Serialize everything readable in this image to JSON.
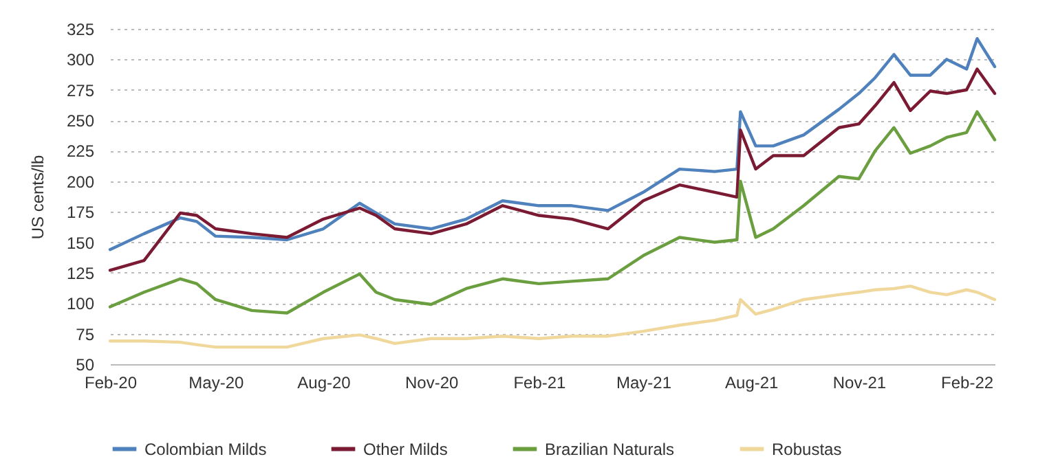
{
  "chart_data": {
    "type": "line",
    "ylabel": "US cents/lb",
    "x": [
      "2020-02-01",
      "2020-03-01",
      "2020-04-01",
      "2020-04-15",
      "2020-05-01",
      "2020-06-01",
      "2020-07-01",
      "2020-08-01",
      "2020-09-01",
      "2020-09-15",
      "2020-10-01",
      "2020-11-01",
      "2020-12-01",
      "2021-01-01",
      "2021-02-01",
      "2021-03-01",
      "2021-04-01",
      "2021-05-01",
      "2021-06-01",
      "2021-07-01",
      "2021-07-20",
      "2021-07-23",
      "2021-08-05",
      "2021-08-20",
      "2021-09-15",
      "2021-10-15",
      "2021-11-01",
      "2021-11-15",
      "2021-12-01",
      "2021-12-15",
      "2022-01-01",
      "2022-01-15",
      "2022-02-01",
      "2022-02-10",
      "2022-02-25"
    ],
    "series": [
      {
        "name": "Colombian Milds",
        "color": "#4f81bd",
        "values": [
          144,
          157,
          170,
          167,
          155,
          154,
          152,
          161,
          182,
          174,
          165,
          161,
          169,
          184,
          180,
          180,
          176,
          191,
          210,
          208,
          210,
          257,
          229,
          229,
          238,
          259,
          272,
          285,
          304,
          287,
          287,
          300,
          292,
          317,
          294
        ]
      },
      {
        "name": "Other Milds",
        "color": "#7b1a33",
        "values": [
          127,
          135,
          174,
          172,
          161,
          157,
          154,
          169,
          178,
          172,
          161,
          157,
          165,
          180,
          172,
          169,
          161,
          184,
          197,
          191,
          187,
          242,
          210,
          221,
          221,
          244,
          247,
          262,
          281,
          258,
          274,
          272,
          275,
          292,
          272
        ]
      },
      {
        "name": "Brazilian Naturals",
        "color": "#6a9e3f",
        "values": [
          97,
          109,
          120,
          116,
          103,
          94,
          92,
          109,
          124,
          109,
          103,
          99,
          112,
          120,
          116,
          118,
          120,
          139,
          154,
          150,
          152,
          200,
          154,
          161,
          180,
          204,
          202,
          225,
          244,
          223,
          229,
          236,
          240,
          257,
          234
        ]
      },
      {
        "name": "Robustas",
        "color": "#f0d89c",
        "values": [
          69,
          69,
          68,
          66,
          64,
          64,
          64,
          71,
          74,
          71,
          67,
          71,
          71,
          73,
          71,
          73,
          73,
          77,
          82,
          86,
          90,
          103,
          91,
          95,
          103,
          107,
          109,
          111,
          112,
          114,
          109,
          107,
          111,
          109,
          103
        ]
      }
    ],
    "xlim": [
      "2020-02-01",
      "2022-02-25"
    ],
    "xticks": [
      {
        "value": "2020-02-01",
        "label": "Feb-20"
      },
      {
        "value": "2020-05-01",
        "label": "May-20"
      },
      {
        "value": "2020-08-01",
        "label": "Aug-20"
      },
      {
        "value": "2020-11-01",
        "label": "Nov-20"
      },
      {
        "value": "2021-02-01",
        "label": "Feb-21"
      },
      {
        "value": "2021-05-01",
        "label": "May-21"
      },
      {
        "value": "2021-08-01",
        "label": "Aug-21"
      },
      {
        "value": "2021-11-01",
        "label": "Nov-21"
      },
      {
        "value": "2022-02-01",
        "label": "Feb-22"
      }
    ],
    "ylim": [
      50,
      325
    ],
    "yticks": [
      50,
      75,
      100,
      125,
      150,
      175,
      200,
      225,
      250,
      275,
      300,
      325
    ],
    "grid": "y",
    "legend": "bottom"
  }
}
